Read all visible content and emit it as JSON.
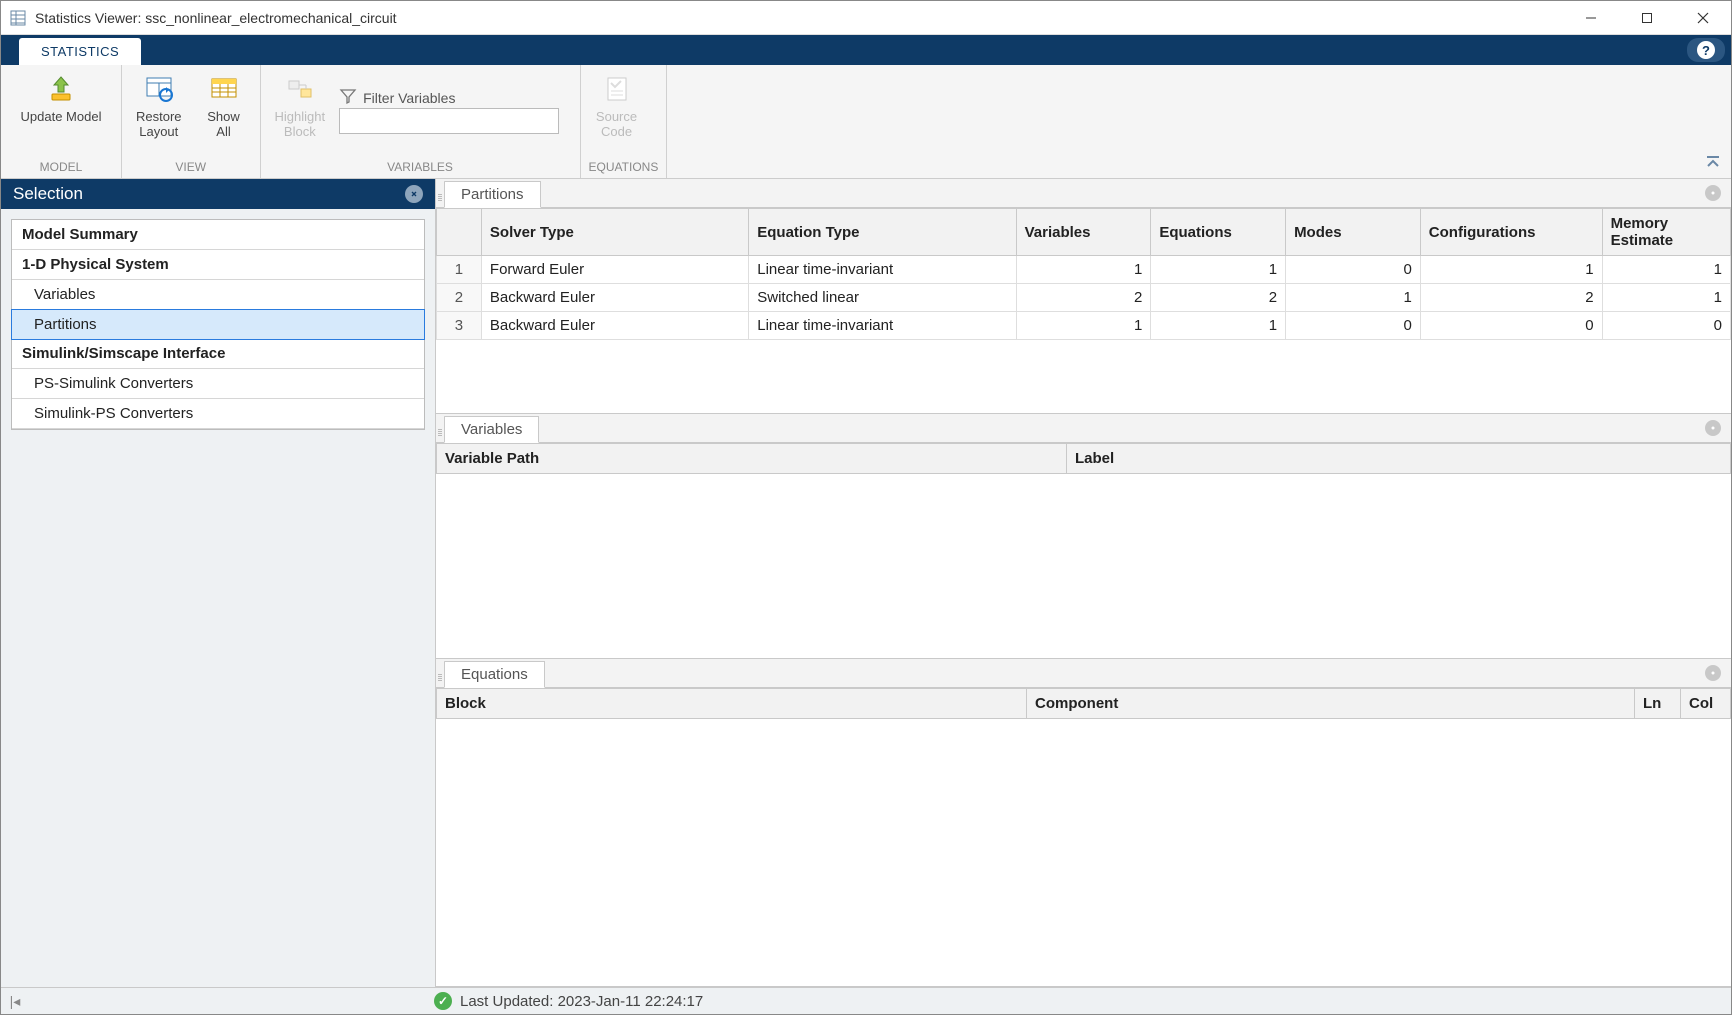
{
  "window": {
    "title": "Statistics Viewer: ssc_nonlinear_electromechanical_circuit"
  },
  "tabstrip": {
    "active_tab": "STATISTICS"
  },
  "ribbon": {
    "groups": {
      "model": {
        "label": "MODEL",
        "update_model": "Update Model"
      },
      "view": {
        "label": "VIEW",
        "restore_layout_l1": "Restore",
        "restore_layout_l2": "Layout",
        "show_all_l1": "Show",
        "show_all_l2": "All"
      },
      "variables": {
        "label": "VARIABLES",
        "highlight_block_l1": "Highlight",
        "highlight_block_l2": "Block",
        "filter_label": "Filter Variables",
        "filter_value": ""
      },
      "equations": {
        "label": "EQUATIONS",
        "source_code_l1": "Source",
        "source_code_l2": "Code"
      }
    }
  },
  "selection": {
    "header": "Selection",
    "items": [
      {
        "label": "Model Summary",
        "kind": "header"
      },
      {
        "label": "1-D Physical System",
        "kind": "bold"
      },
      {
        "label": "Variables",
        "kind": "child"
      },
      {
        "label": "Partitions",
        "kind": "child",
        "selected": true
      },
      {
        "label": "Simulink/Simscape Interface",
        "kind": "bold"
      },
      {
        "label": "PS-Simulink Converters",
        "kind": "child"
      },
      {
        "label": "Simulink-PS Converters",
        "kind": "child"
      }
    ]
  },
  "panes": {
    "partitions": {
      "tab": "Partitions",
      "columns": [
        "Solver Type",
        "Equation Type",
        "Variables",
        "Equations",
        "Modes",
        "Configurations",
        "Memory Estimate"
      ],
      "rows": [
        {
          "n": "1",
          "solver": "Forward Euler",
          "eq": "Linear time-invariant",
          "vars": "1",
          "eqs": "1",
          "modes": "0",
          "cfgs": "1",
          "mem": "1"
        },
        {
          "n": "2",
          "solver": "Backward Euler",
          "eq": "Switched linear",
          "vars": "2",
          "eqs": "2",
          "modes": "1",
          "cfgs": "2",
          "mem": "1"
        },
        {
          "n": "3",
          "solver": "Backward Euler",
          "eq": "Linear time-invariant",
          "vars": "1",
          "eqs": "1",
          "modes": "0",
          "cfgs": "0",
          "mem": "0"
        }
      ]
    },
    "variables": {
      "tab": "Variables",
      "columns": [
        "Variable Path",
        "Label"
      ]
    },
    "equations": {
      "tab": "Equations",
      "columns": [
        "Block",
        "Component",
        "Ln",
        "Col"
      ]
    }
  },
  "status": {
    "text": "Last Updated: 2023-Jan-11 22:24:17"
  },
  "colors": {
    "brand": "#0e3a66",
    "selection_bg": "#d6e9fb",
    "selection_border": "#2a7bde",
    "status_ok": "#4caf50"
  }
}
